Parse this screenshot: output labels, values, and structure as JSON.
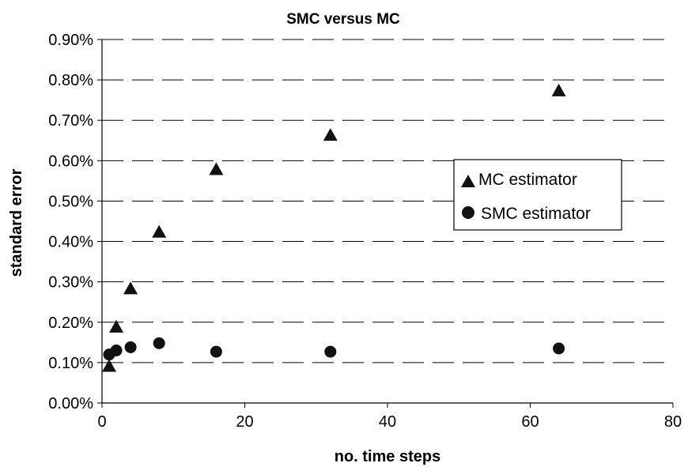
{
  "chart_data": {
    "type": "scatter",
    "title": "SMC versus MC",
    "xlabel": "no. time steps",
    "ylabel": "standard error",
    "xlim": [
      0,
      80
    ],
    "ylim": [
      0,
      0.009
    ],
    "x_ticks": [
      "0",
      "20",
      "40",
      "60",
      "80"
    ],
    "y_ticks": [
      "0.00%",
      "0.10%",
      "0.20%",
      "0.30%",
      "0.40%",
      "0.50%",
      "0.60%",
      "0.70%",
      "0.80%",
      "0.90%"
    ],
    "grid": "horizontal dashed",
    "legend_position": "right",
    "series": [
      {
        "name": "MC estimator",
        "marker": "triangle",
        "color": "#000000",
        "points": [
          {
            "x": 1,
            "y": 0.00093
          },
          {
            "x": 2,
            "y": 0.0019
          },
          {
            "x": 4,
            "y": 0.00285
          },
          {
            "x": 8,
            "y": 0.00425
          },
          {
            "x": 16,
            "y": 0.0058
          },
          {
            "x": 32,
            "y": 0.00665
          },
          {
            "x": 64,
            "y": 0.00775
          }
        ]
      },
      {
        "name": "SMC estimator",
        "marker": "circle",
        "color": "#000000",
        "points": [
          {
            "x": 1,
            "y": 0.0012
          },
          {
            "x": 2,
            "y": 0.0013
          },
          {
            "x": 4,
            "y": 0.00138
          },
          {
            "x": 8,
            "y": 0.00148
          },
          {
            "x": 16,
            "y": 0.00127
          },
          {
            "x": 32,
            "y": 0.00127
          },
          {
            "x": 64,
            "y": 0.00135
          }
        ]
      }
    ]
  }
}
